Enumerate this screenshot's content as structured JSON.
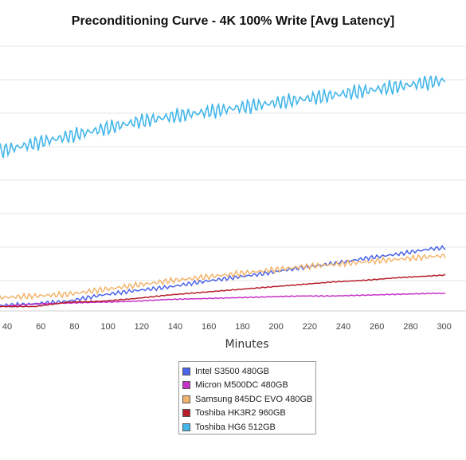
{
  "chart_data": {
    "type": "line",
    "title": "Preconditioning Curve - 4K 100% Write [Avg Latency]",
    "xlabel": "Minutes",
    "ylabel": "",
    "x_ticks": [
      40,
      60,
      80,
      100,
      120,
      140,
      160,
      180,
      200,
      220,
      240,
      260,
      280,
      300
    ],
    "xlim": [
      38,
      308
    ],
    "x": [
      38,
      60,
      80,
      100,
      120,
      140,
      160,
      180,
      200,
      220,
      240,
      260,
      280,
      300,
      308
    ],
    "legend_position": "bottom",
    "grid": true,
    "series": [
      {
        "name": "Intel S3500 480GB",
        "color": "#4a63e8",
        "values": [
          0.6,
          0.8,
          1.1,
          1.8,
          2.3,
          2.7,
          3.3,
          3.8,
          4.3,
          4.9,
          5.4,
          6.0,
          6.5,
          7.1,
          7.2
        ]
      },
      {
        "name": "Micron M500DC 480GB",
        "color": "#c531c8",
        "values": [
          0.5,
          0.8,
          0.9,
          1.0,
          1.1,
          1.3,
          1.4,
          1.5,
          1.6,
          1.7,
          1.7,
          1.8,
          1.9,
          2.0,
          2.0
        ]
      },
      {
        "name": "Samsung 845DC EVO 480GB",
        "color": "#f2b46c",
        "values": [
          1.5,
          1.7,
          1.9,
          2.4,
          2.9,
          3.4,
          3.8,
          4.2,
          4.6,
          5.0,
          5.3,
          5.6,
          5.9,
          6.2,
          6.3
        ]
      },
      {
        "name": "Toshiba HK3R2 960GB",
        "color": "#b81e2a",
        "values": [
          0.5,
          0.5,
          1.0,
          1.1,
          1.4,
          1.8,
          2.1,
          2.4,
          2.7,
          3.0,
          3.3,
          3.5,
          3.8,
          4.0,
          4.1
        ]
      },
      {
        "name": "Toshiba HG6 512GB",
        "color": "#43b6ea",
        "values": [
          18.2,
          19.1,
          19.9,
          20.7,
          21.5,
          22.1,
          22.6,
          23.1,
          23.6,
          24.1,
          24.6,
          25.1,
          25.6,
          26.1,
          26.3
        ]
      }
    ]
  }
}
